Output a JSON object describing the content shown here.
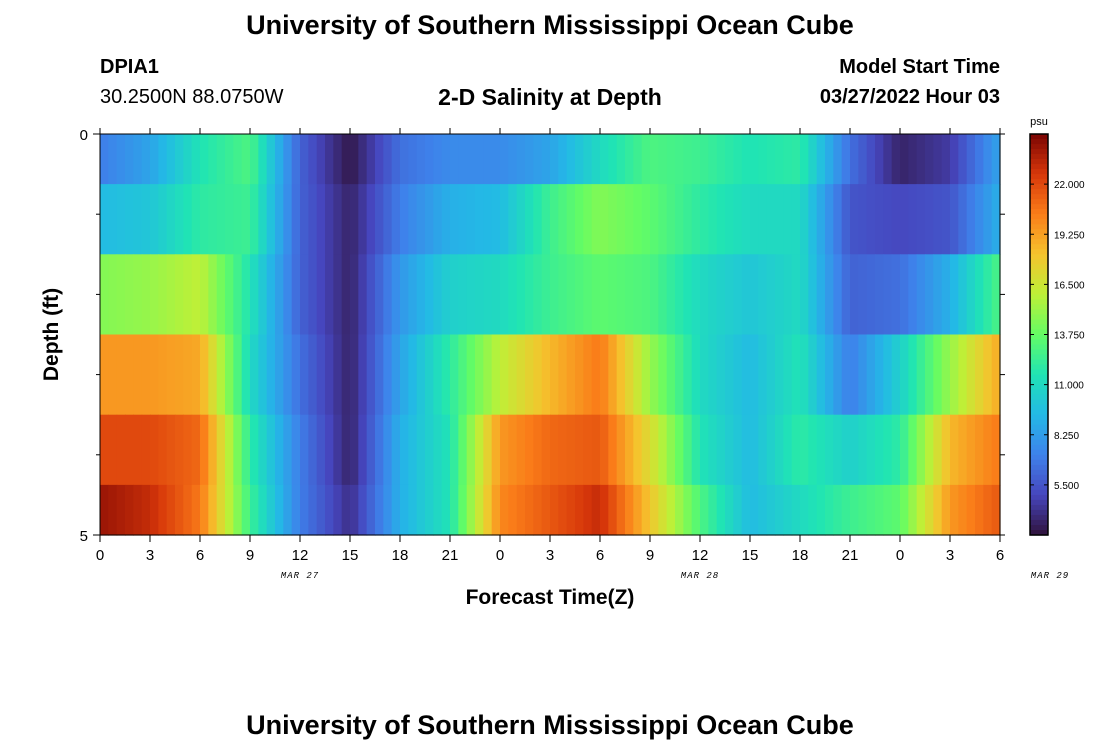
{
  "header": {
    "title": "University of Southern Mississippi Ocean Cube",
    "station_id": "DPIA1",
    "station_coords": "30.2500N  88.0750W",
    "plot_title": "2-D Salinity at Depth",
    "start_label": "Model Start Time",
    "start_value": "03/27/2022 Hour 03"
  },
  "footer": {
    "title": "University of Southern Mississippi Ocean Cube"
  },
  "chart_data": {
    "type": "heatmap",
    "title": "2-D Salinity at Depth",
    "xlabel": "Forecast Time(Z)",
    "ylabel": "Depth (ft)",
    "x_tick_labels": [
      "0",
      "3",
      "6",
      "9",
      "12",
      "15",
      "18",
      "21",
      "0",
      "3",
      "6",
      "9",
      "12",
      "15",
      "18",
      "21",
      "0",
      "3",
      "6"
    ],
    "date_labels": [
      {
        "label": "MAR 27",
        "hour": 12
      },
      {
        "label": "MAR 28",
        "hour": 36
      },
      {
        "label": "MAR 29",
        "hour": 57
      }
    ],
    "x_range_hours": [
      0,
      54
    ],
    "y_range_ft": [
      0,
      5
    ],
    "y_tick_labels": [
      "0",
      "5"
    ],
    "colorbar": {
      "unit": "psu",
      "ticks": [
        "22.000",
        "19.250",
        "16.500",
        "13.750",
        "11.000",
        "8.250",
        "5.500"
      ],
      "range": [
        2.75,
        24.75
      ]
    },
    "hours": [
      0,
      3,
      6,
      9,
      12,
      15,
      18,
      21,
      24,
      27,
      30,
      33,
      36,
      39,
      42,
      45,
      48,
      51,
      54
    ],
    "rows": [
      {
        "depth_ft": 0.25,
        "values": [
          7.0,
          8.5,
          11.5,
          13.0,
          6.0,
          3.0,
          6.5,
          7.5,
          7.5,
          8.5,
          11.0,
          13.0,
          12.5,
          11.5,
          12.0,
          6.5,
          3.5,
          4.5,
          8.5
        ]
      },
      {
        "depth_ft": 1.0,
        "values": [
          9.5,
          10.0,
          12.0,
          12.5,
          6.0,
          3.5,
          7.0,
          9.0,
          9.5,
          12.5,
          14.5,
          13.5,
          12.0,
          11.0,
          11.0,
          5.5,
          5.0,
          5.5,
          9.0
        ]
      },
      {
        "depth_ft": 2.0,
        "values": [
          14.5,
          15.0,
          16.0,
          11.5,
          6.0,
          3.5,
          8.0,
          10.5,
          11.0,
          12.5,
          13.5,
          13.0,
          11.0,
          10.0,
          11.0,
          6.0,
          6.5,
          9.0,
          13.0
        ]
      },
      {
        "depth_ft": 3.0,
        "values": [
          19.5,
          19.5,
          19.0,
          11.0,
          6.5,
          3.5,
          8.5,
          12.0,
          16.0,
          18.5,
          20.5,
          15.0,
          11.0,
          9.5,
          11.5,
          7.0,
          10.5,
          15.0,
          19.0
        ]
      },
      {
        "depth_ft": 4.0,
        "values": [
          22.0,
          22.0,
          21.0,
          12.0,
          7.0,
          3.5,
          9.0,
          11.5,
          19.5,
          21.0,
          21.5,
          17.0,
          11.5,
          9.5,
          12.0,
          10.5,
          12.0,
          18.5,
          20.5
        ]
      },
      {
        "depth_ft": 4.75,
        "values": [
          24.0,
          23.0,
          20.5,
          12.5,
          7.0,
          4.0,
          9.0,
          11.5,
          20.0,
          21.5,
          23.0,
          18.0,
          13.0,
          9.5,
          11.0,
          12.5,
          13.5,
          19.5,
          21.5
        ]
      }
    ]
  }
}
